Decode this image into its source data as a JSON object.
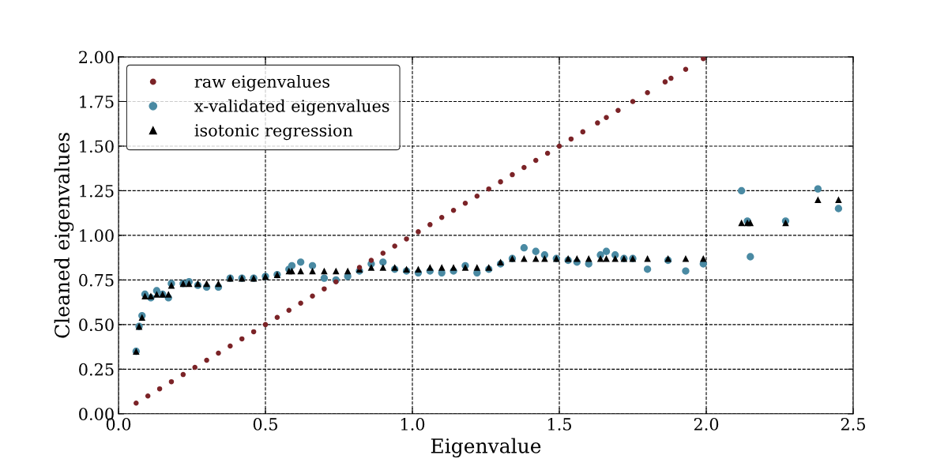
{
  "chart_data": {
    "type": "scatter",
    "xlabel": "Eigenvalue",
    "ylabel": "Cleaned eigenvalues",
    "xlim": [
      0.0,
      2.5
    ],
    "ylim": [
      0.0,
      2.0
    ],
    "xticks": [
      {
        "value": 0,
        "label": "0.0"
      },
      0.5,
      {
        "value": 1,
        "label": "1.0"
      },
      1.5,
      {
        "value": 2,
        "label": "2.0"
      },
      2.5
    ],
    "yticks": [
      {
        "value": 0,
        "label": "0.00"
      },
      0.25,
      {
        "value": 0.5,
        "label": "0.50"
      },
      0.75,
      {
        "value": 1,
        "label": "1.00"
      },
      1.25,
      {
        "value": 1.5,
        "label": "1.50"
      },
      1.75,
      {
        "value": 2,
        "label": "2.00"
      }
    ],
    "grid": true,
    "legend": "top left",
    "series": [
      {
        "name": "raw eigenvalues",
        "color": "#7b2327",
        "marker": "circle",
        "x": [
          0.06,
          0.1,
          0.14,
          0.18,
          0.22,
          0.26,
          0.3,
          0.34,
          0.38,
          0.42,
          0.46,
          0.5,
          0.54,
          0.58,
          0.62,
          0.66,
          0.7,
          0.74,
          0.82,
          0.86,
          0.9,
          0.94,
          0.98,
          1.02,
          1.06,
          1.1,
          1.14,
          1.18,
          1.22,
          1.26,
          1.3,
          1.34,
          1.38,
          1.42,
          1.46,
          1.5,
          1.54,
          1.58,
          1.63,
          1.66,
          1.7,
          1.75,
          1.8,
          1.86,
          1.88,
          1.93,
          1.99
        ],
        "values": [
          0.06,
          0.1,
          0.14,
          0.18,
          0.22,
          0.26,
          0.3,
          0.34,
          0.38,
          0.42,
          0.46,
          0.5,
          0.54,
          0.58,
          0.62,
          0.66,
          0.7,
          0.74,
          0.82,
          0.86,
          0.9,
          0.94,
          0.98,
          1.02,
          1.06,
          1.1,
          1.14,
          1.18,
          1.22,
          1.26,
          1.3,
          1.34,
          1.38,
          1.42,
          1.46,
          1.5,
          1.54,
          1.58,
          1.63,
          1.66,
          1.7,
          1.75,
          1.8,
          1.86,
          1.88,
          1.93,
          1.99
        ]
      },
      {
        "name": "x-validated eigenvalues",
        "color": "#4a8aa3",
        "marker": "circle",
        "x": [
          0.06,
          0.07,
          0.08,
          0.09,
          0.11,
          0.13,
          0.15,
          0.17,
          0.18,
          0.22,
          0.24,
          0.27,
          0.3,
          0.34,
          0.38,
          0.42,
          0.46,
          0.5,
          0.54,
          0.58,
          0.59,
          0.62,
          0.66,
          0.7,
          0.74,
          0.78,
          0.82,
          0.86,
          0.9,
          0.94,
          0.98,
          1.02,
          1.06,
          1.1,
          1.14,
          1.18,
          1.22,
          1.26,
          1.3,
          1.34,
          1.38,
          1.42,
          1.45,
          1.49,
          1.53,
          1.56,
          1.6,
          1.64,
          1.66,
          1.69,
          1.72,
          1.75,
          1.8,
          1.87,
          1.93,
          1.99,
          2.12,
          2.14,
          2.15,
          2.27,
          2.38,
          2.45
        ],
        "values": [
          0.35,
          0.49,
          0.55,
          0.67,
          0.65,
          0.69,
          0.67,
          0.65,
          0.73,
          0.73,
          0.74,
          0.72,
          0.71,
          0.71,
          0.76,
          0.76,
          0.76,
          0.77,
          0.78,
          0.81,
          0.83,
          0.85,
          0.83,
          0.76,
          0.75,
          0.77,
          0.8,
          0.84,
          0.85,
          0.81,
          0.8,
          0.79,
          0.8,
          0.79,
          0.8,
          0.83,
          0.79,
          0.81,
          0.84,
          0.87,
          0.93,
          0.91,
          0.89,
          0.87,
          0.86,
          0.85,
          0.84,
          0.89,
          0.91,
          0.89,
          0.87,
          0.87,
          0.81,
          0.86,
          0.8,
          0.84,
          1.25,
          1.08,
          0.88,
          1.08,
          1.26,
          1.15
        ]
      },
      {
        "name": "isotonic regression",
        "color": "#000000",
        "marker": "triangle",
        "x": [
          0.06,
          0.07,
          0.08,
          0.09,
          0.11,
          0.13,
          0.15,
          0.17,
          0.18,
          0.22,
          0.24,
          0.27,
          0.3,
          0.34,
          0.38,
          0.42,
          0.46,
          0.5,
          0.54,
          0.58,
          0.59,
          0.62,
          0.66,
          0.7,
          0.74,
          0.78,
          0.82,
          0.86,
          0.9,
          0.94,
          0.98,
          1.02,
          1.06,
          1.1,
          1.14,
          1.18,
          1.22,
          1.26,
          1.3,
          1.34,
          1.38,
          1.42,
          1.45,
          1.49,
          1.53,
          1.56,
          1.6,
          1.64,
          1.66,
          1.69,
          1.72,
          1.75,
          1.8,
          1.87,
          1.93,
          1.99,
          2.12,
          2.14,
          2.15,
          2.27,
          2.38,
          2.45
        ],
        "values": [
          0.35,
          0.49,
          0.54,
          0.66,
          0.66,
          0.67,
          0.67,
          0.67,
          0.72,
          0.73,
          0.73,
          0.73,
          0.73,
          0.73,
          0.76,
          0.76,
          0.76,
          0.77,
          0.78,
          0.8,
          0.8,
          0.8,
          0.8,
          0.8,
          0.8,
          0.8,
          0.81,
          0.82,
          0.82,
          0.82,
          0.81,
          0.81,
          0.82,
          0.82,
          0.82,
          0.82,
          0.82,
          0.82,
          0.85,
          0.87,
          0.87,
          0.87,
          0.87,
          0.87,
          0.87,
          0.87,
          0.87,
          0.87,
          0.87,
          0.87,
          0.87,
          0.87,
          0.87,
          0.87,
          0.87,
          0.87,
          1.07,
          1.07,
          1.07,
          1.07,
          1.2,
          1.2
        ]
      }
    ]
  }
}
